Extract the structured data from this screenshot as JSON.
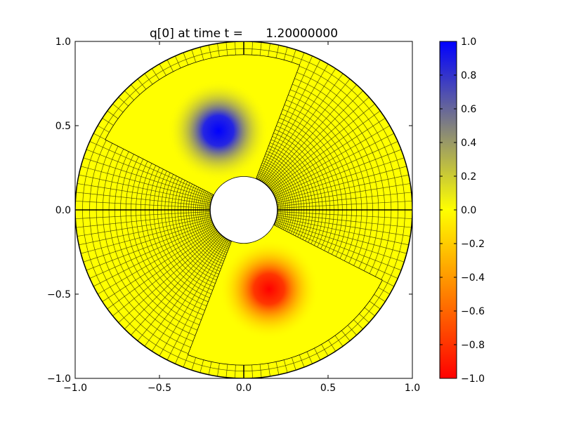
{
  "chart_data": {
    "type": "heatmap",
    "title": "q[0] at time t =      1.20000000",
    "xlabel": "",
    "ylabel": "",
    "xlim": [
      -1.0,
      1.0
    ],
    "ylim": [
      -1.0,
      1.0
    ],
    "x_ticks": [
      "−1.0",
      "−0.5",
      "0.0",
      "0.5",
      "1.0"
    ],
    "x_tick_values": [
      -1.0,
      -0.5,
      0.0,
      0.5,
      1.0
    ],
    "y_ticks": [
      "−1.0",
      "−0.5",
      "0.0",
      "0.5",
      "1.0"
    ],
    "y_tick_values": [
      -1.0,
      -0.5,
      0.0,
      0.5,
      1.0
    ],
    "domain": {
      "inner_radius": 0.2,
      "outer_radius": 1.0,
      "radial_cells": 36,
      "angular_cells": 120
    },
    "refined_patches": [
      {
        "theta_start_deg": 69,
        "theta_end_deg": 153,
        "r_inner": 0.2,
        "r_outer": 0.92,
        "split_deg": 90
      },
      {
        "theta_start_deg": 249,
        "theta_end_deg": 333,
        "r_inner": 0.2,
        "r_outer": 0.92,
        "split_deg": 270
      }
    ],
    "features": [
      {
        "x": -0.15,
        "y": 0.47,
        "value": 1.0,
        "width": 0.1
      },
      {
        "x": 0.15,
        "y": -0.47,
        "value": -1.0,
        "width": 0.1
      }
    ],
    "colorbar": {
      "vmin": -1.0,
      "vmax": 1.0,
      "ticks": [
        "1.0",
        "0.8",
        "0.6",
        "0.4",
        "0.2",
        "0.0",
        "−0.2",
        "−0.4",
        "−0.6",
        "−0.8",
        "−1.0"
      ],
      "tick_values": [
        1.0,
        0.8,
        0.6,
        0.4,
        0.2,
        0.0,
        -0.2,
        -0.4,
        -0.6,
        -0.8,
        -1.0
      ],
      "colors": {
        "max": "#0000ff",
        "mid_high": "#808080",
        "zero": "#ffff00",
        "mid_low": "#ff8000",
        "min": "#ff0000"
      }
    }
  }
}
